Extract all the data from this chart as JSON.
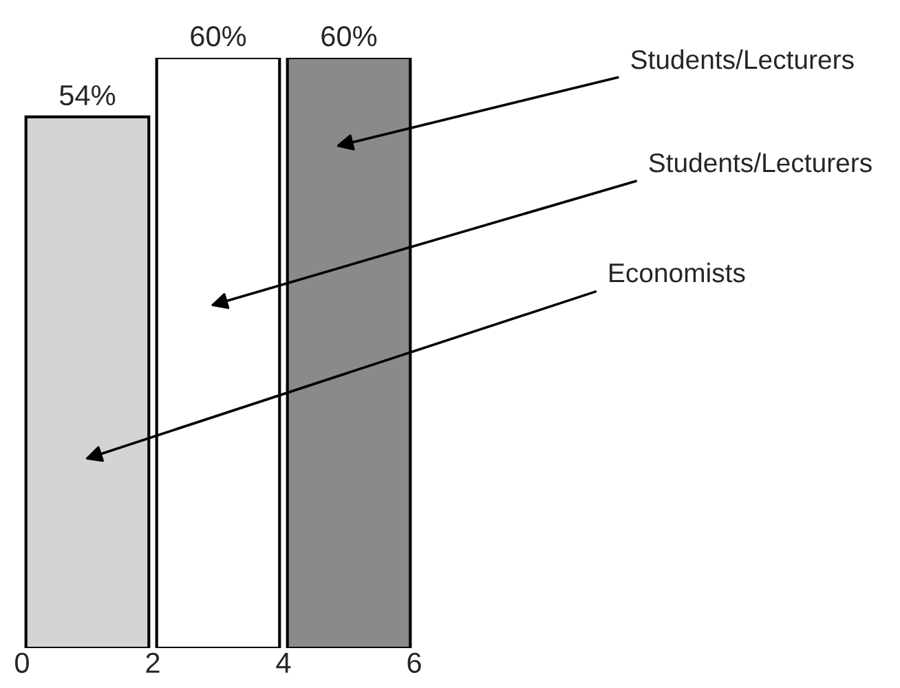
{
  "chart_data": {
    "type": "bar",
    "x": [
      1,
      3,
      5
    ],
    "values": [
      54,
      60,
      60
    ],
    "colors": [
      "#d4d4d4",
      "#ffffff",
      "#8a8a8a"
    ],
    "value_labels": [
      "54%",
      "60%",
      "60%"
    ],
    "xlim": [
      0,
      6
    ],
    "xticks": [
      0,
      2,
      4,
      6
    ],
    "tick_labels": "x",
    "grid": false,
    "annotations": [
      "Students/Lecturers",
      "Students/Lecturers",
      "Economists"
    ]
  }
}
